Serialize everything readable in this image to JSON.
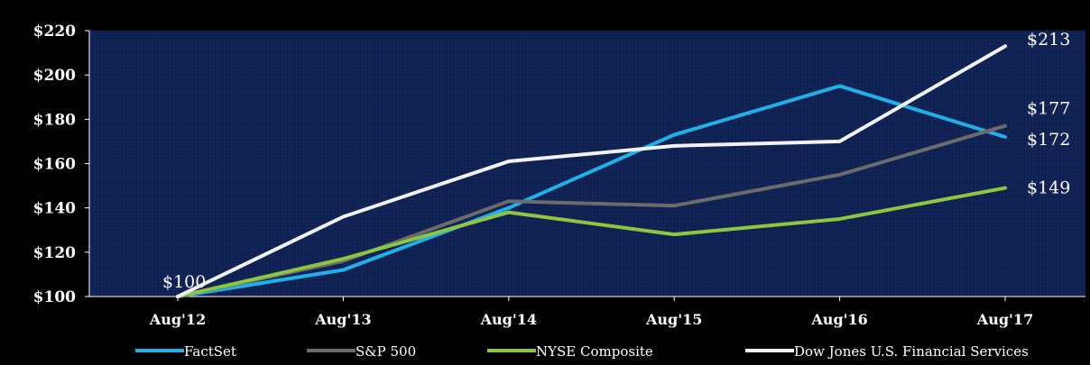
{
  "chart_data": {
    "type": "line",
    "title": "",
    "xlabel": "",
    "ylabel": "",
    "categories": [
      "Aug'12",
      "Aug'13",
      "Aug'14",
      "Aug'15",
      "Aug'16",
      "Aug'17"
    ],
    "ylim": [
      100,
      220
    ],
    "yticks": [
      100,
      120,
      140,
      160,
      180,
      200,
      220
    ],
    "ytick_labels": [
      "$100",
      "$120",
      "$140",
      "$160",
      "$180",
      "$200",
      "$220"
    ],
    "grid": false,
    "legend_position": "bottom",
    "background_color": "#0f2152",
    "series": [
      {
        "name": "FactSet",
        "color": "#1fb1ea",
        "values": [
          100,
          112,
          140,
          173,
          195,
          172
        ]
      },
      {
        "name": "S&P 500",
        "color": "#6b6b6b",
        "values": [
          100,
          116,
          143,
          141,
          155,
          177
        ]
      },
      {
        "name": "NYSE Composite",
        "color": "#8dc63f",
        "values": [
          100,
          117,
          138,
          128,
          135,
          149
        ]
      },
      {
        "name": "Dow Jones U.S. Financial Services",
        "color": "#f2f2f2",
        "values": [
          100,
          136,
          161,
          168,
          170,
          213
        ]
      }
    ],
    "annotations": [
      {
        "text": "$100",
        "category": "Aug'12",
        "value": 100
      },
      {
        "text": "$213",
        "category": "Aug'17",
        "value": 213
      },
      {
        "text": "$177",
        "category": "Aug'17",
        "value": 177
      },
      {
        "text": "$172",
        "category": "Aug'17",
        "value": 172
      },
      {
        "text": "$149",
        "category": "Aug'17",
        "value": 149
      }
    ]
  }
}
